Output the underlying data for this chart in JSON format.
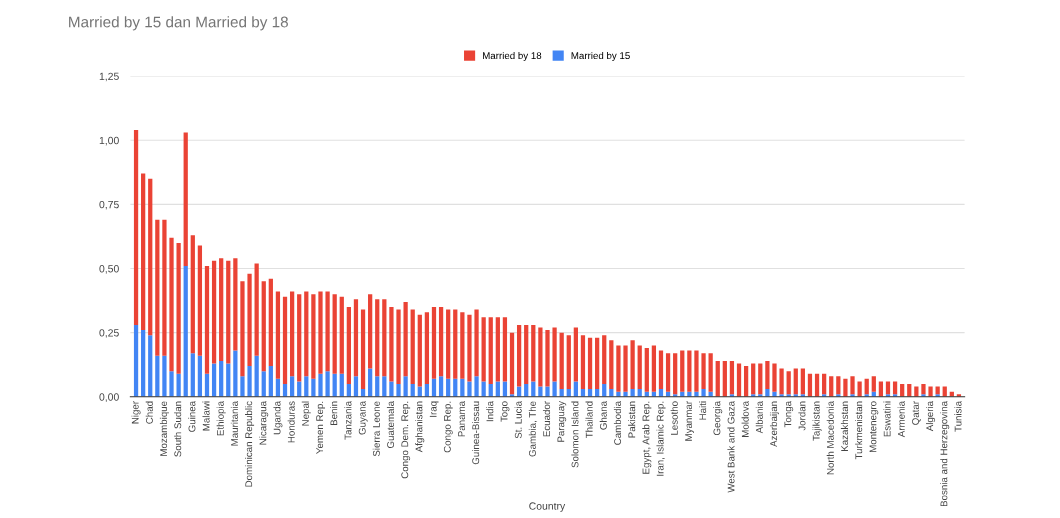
{
  "chart_data": {
    "type": "bar",
    "stacked": true,
    "title": "Married by 15 dan Married by 18",
    "xlabel": "Country",
    "categories": [
      "Niger",
      null,
      "Chad",
      null,
      "Mozambique",
      null,
      "South Sudan",
      null,
      "Guinea",
      null,
      "Malawi",
      null,
      "Ethiopia",
      null,
      "Mauritania",
      null,
      "Dominican Republic",
      null,
      "Nicaragua",
      null,
      "Uganda",
      null,
      "Honduras",
      null,
      "Nepal",
      null,
      "Yemen Rep.",
      null,
      "Benin",
      null,
      "Tanzania",
      null,
      "Guyana",
      null,
      "Sierra Leone",
      null,
      "Guatemala",
      null,
      "Congo Dem. Rep.",
      null,
      "Afghanistan",
      null,
      "Iraq",
      null,
      "Congo Rep.",
      null,
      "Panama",
      null,
      "Guinea-Bissau",
      null,
      "India",
      null,
      "Togo",
      null,
      "St. Lucia",
      null,
      "Gambia, The",
      null,
      "Ecuador",
      null,
      "Paraguay",
      null,
      "Solomon Island",
      null,
      "Thailand",
      null,
      "Ghana",
      null,
      "Cambodia",
      null,
      "Pakistan",
      null,
      "Egypt, Arab Rep.",
      null,
      "Iran, Islamic Rep.",
      null,
      "Lesotho",
      null,
      "Myanmar",
      null,
      "Haiti",
      null,
      "Georgia",
      null,
      "West Bank and Gaza",
      null,
      "Moldova",
      null,
      "Albania",
      null,
      "Azerbaijan",
      null,
      "Tonga",
      null,
      "Jordan",
      null,
      "Tajikistan",
      null,
      "North Macedonia",
      null,
      "Kazakhstan",
      null,
      "Turkmenistan",
      null,
      "Montenegro",
      null,
      "Eswatini",
      null,
      "Armenia",
      null,
      "Qatar",
      null,
      "Algeria",
      null,
      "Bosnia and Herzegovina",
      null,
      "Tunisia"
    ],
    "series": [
      {
        "name": "Married by 15",
        "color": "#4285f4",
        "values": [
          0.28,
          0.26,
          0.24,
          0.16,
          0.16,
          0.1,
          0.09,
          0.51,
          0.17,
          0.16,
          0.09,
          0.13,
          0.14,
          0.13,
          0.18,
          0.08,
          0.12,
          0.16,
          0.1,
          0.12,
          0.07,
          0.05,
          0.08,
          0.06,
          0.08,
          0.07,
          0.09,
          0.1,
          0.09,
          0.09,
          0.05,
          0.08,
          0.03,
          0.11,
          0.08,
          0.08,
          0.06,
          0.05,
          0.08,
          0.05,
          0.04,
          0.05,
          0.07,
          0.08,
          0.07,
          0.07,
          0.07,
          0.06,
          0.08,
          0.06,
          0.05,
          0.06,
          0.06,
          0.01,
          0.04,
          0.05,
          0.06,
          0.04,
          0.04,
          0.06,
          0.03,
          0.03,
          0.06,
          0.03,
          0.03,
          0.03,
          0.05,
          0.03,
          0.02,
          0.02,
          0.03,
          0.03,
          0.02,
          0.02,
          0.03,
          0.02,
          0.01,
          0.02,
          0.02,
          0.02,
          0.03,
          0.02,
          0,
          0,
          0.01,
          0,
          0,
          0.01,
          0.01,
          0.03,
          0.02,
          0.01,
          0.01,
          0.01,
          0.01,
          0,
          0,
          0.01,
          0,
          0.01,
          0,
          0.01,
          0,
          0.01,
          0.02,
          0,
          0.01,
          0.01,
          0,
          0,
          0,
          0.01,
          0,
          0.01,
          0,
          0,
          0
        ]
      },
      {
        "name": "Married by 18",
        "color": "#ea4335",
        "values": [
          0.76,
          0.61,
          0.61,
          0.53,
          0.53,
          0.52,
          0.51,
          0.52,
          0.46,
          0.43,
          0.42,
          0.4,
          0.4,
          0.4,
          0.36,
          0.37,
          0.36,
          0.36,
          0.35,
          0.34,
          0.34,
          0.34,
          0.33,
          0.34,
          0.33,
          0.33,
          0.32,
          0.31,
          0.31,
          0.3,
          0.3,
          0.3,
          0.31,
          0.29,
          0.3,
          0.3,
          0.29,
          0.29,
          0.29,
          0.29,
          0.28,
          0.28,
          0.28,
          0.27,
          0.27,
          0.27,
          0.26,
          0.26,
          0.26,
          0.25,
          0.26,
          0.25,
          0.25,
          0.24,
          0.24,
          0.23,
          0.22,
          0.23,
          0.22,
          0.21,
          0.22,
          0.21,
          0.21,
          0.21,
          0.2,
          0.2,
          0.19,
          0.19,
          0.18,
          0.18,
          0.19,
          0.17,
          0.17,
          0.18,
          0.15,
          0.15,
          0.16,
          0.16,
          0.16,
          0.16,
          0.14,
          0.15,
          0.14,
          0.14,
          0.13,
          0.13,
          0.12,
          0.12,
          0.12,
          0.11,
          0.11,
          0.1,
          0.09,
          0.1,
          0.1,
          0.09,
          0.09,
          0.08,
          0.08,
          0.07,
          0.07,
          0.07,
          0.06,
          0.06,
          0.06,
          0.06,
          0.05,
          0.05,
          0.05,
          0.05,
          0.04,
          0.04,
          0.04,
          0.03,
          0.04,
          0.02,
          0.01
        ]
      }
    ],
    "ylim": [
      0,
      1.25
    ],
    "yticks": [
      {
        "value": 0,
        "label": "0,00"
      },
      {
        "value": 0.25,
        "label": "0,25"
      },
      {
        "value": 0.5,
        "label": "0,50"
      },
      {
        "value": 0.75,
        "label": "0,75"
      },
      {
        "value": 1.0,
        "label": "1,00"
      },
      {
        "value": 1.25,
        "label": "1,25"
      }
    ],
    "grid": "y",
    "legend": "top"
  }
}
